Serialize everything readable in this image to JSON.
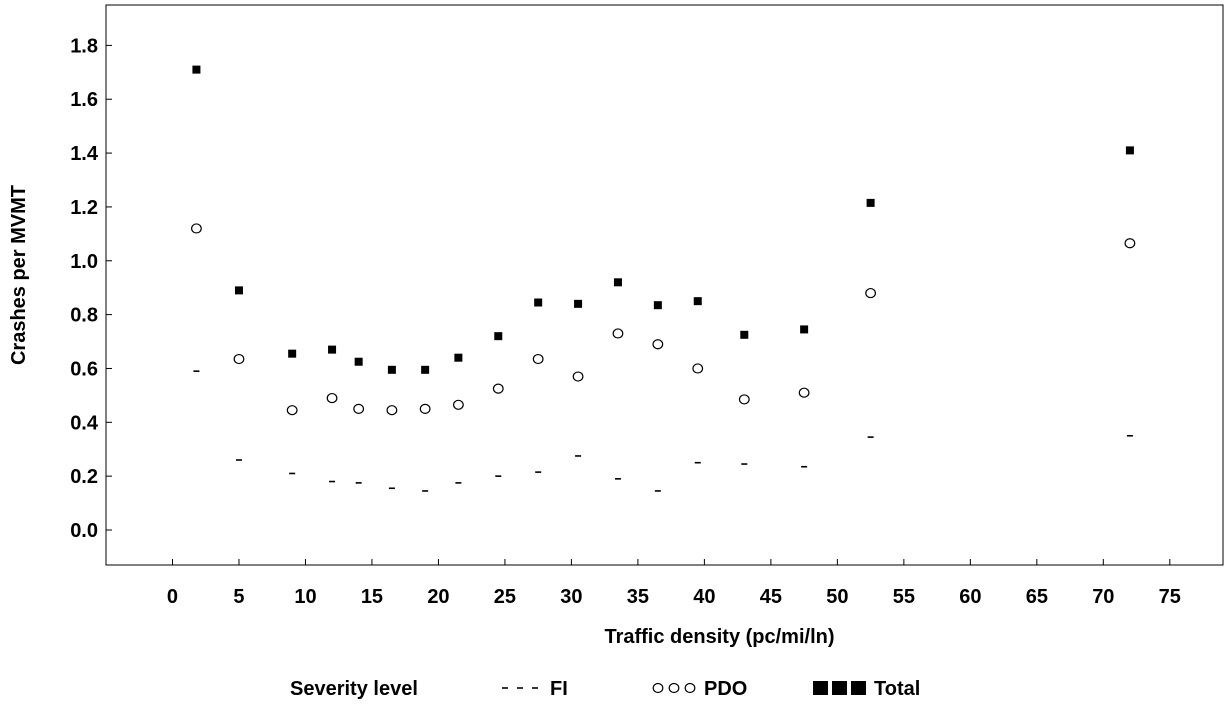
{
  "chart_data": {
    "type": "scatter",
    "title": "",
    "xlabel": "Traffic density (pc/mi/ln)",
    "ylabel": "Crashes per MVMT",
    "xlim": [
      -5,
      79
    ],
    "ylim": [
      -0.13,
      1.95
    ],
    "x_ticks": [
      0,
      5,
      10,
      15,
      20,
      25,
      30,
      35,
      40,
      45,
      50,
      55,
      60,
      65,
      70,
      75
    ],
    "y_ticks": [
      0.0,
      0.2,
      0.4,
      0.6,
      0.8,
      1.0,
      1.2,
      1.4,
      1.6,
      1.8
    ],
    "grid": false,
    "legend": {
      "title": "Severity level",
      "placement": "bottom",
      "entries": [
        "FI",
        "PDO",
        "Total"
      ]
    },
    "series": [
      {
        "name": "FI",
        "marker": "dash",
        "points": [
          [
            1.8,
            0.59
          ],
          [
            5.0,
            0.26
          ],
          [
            9.0,
            0.21
          ],
          [
            12.0,
            0.18
          ],
          [
            14.0,
            0.175
          ],
          [
            16.5,
            0.155
          ],
          [
            19.0,
            0.145
          ],
          [
            21.5,
            0.175
          ],
          [
            24.5,
            0.2
          ],
          [
            27.5,
            0.215
          ],
          [
            30.5,
            0.275
          ],
          [
            33.5,
            0.19
          ],
          [
            36.5,
            0.145
          ],
          [
            39.5,
            0.25
          ],
          [
            43.0,
            0.245
          ],
          [
            47.5,
            0.235
          ],
          [
            52.5,
            0.345
          ],
          [
            72.0,
            0.35
          ]
        ]
      },
      {
        "name": "PDO",
        "marker": "open-circle",
        "points": [
          [
            1.8,
            1.12
          ],
          [
            5.0,
            0.635
          ],
          [
            9.0,
            0.445
          ],
          [
            12.0,
            0.49
          ],
          [
            14.0,
            0.45
          ],
          [
            16.5,
            0.445
          ],
          [
            19.0,
            0.45
          ],
          [
            21.5,
            0.465
          ],
          [
            24.5,
            0.525
          ],
          [
            27.5,
            0.635
          ],
          [
            30.5,
            0.57
          ],
          [
            33.5,
            0.73
          ],
          [
            36.5,
            0.69
          ],
          [
            39.5,
            0.6
          ],
          [
            43.0,
            0.485
          ],
          [
            47.5,
            0.51
          ],
          [
            52.5,
            0.88
          ],
          [
            72.0,
            1.065
          ]
        ]
      },
      {
        "name": "Total",
        "marker": "filled-square",
        "points": [
          [
            1.8,
            1.71
          ],
          [
            5.0,
            0.89
          ],
          [
            9.0,
            0.655
          ],
          [
            12.0,
            0.67
          ],
          [
            14.0,
            0.625
          ],
          [
            16.5,
            0.595
          ],
          [
            19.0,
            0.595
          ],
          [
            21.5,
            0.64
          ],
          [
            24.5,
            0.72
          ],
          [
            27.5,
            0.845
          ],
          [
            30.5,
            0.84
          ],
          [
            33.5,
            0.92
          ],
          [
            36.5,
            0.835
          ],
          [
            39.5,
            0.85
          ],
          [
            43.0,
            0.725
          ],
          [
            47.5,
            0.745
          ],
          [
            52.5,
            1.215
          ],
          [
            72.0,
            1.41
          ]
        ]
      }
    ]
  }
}
